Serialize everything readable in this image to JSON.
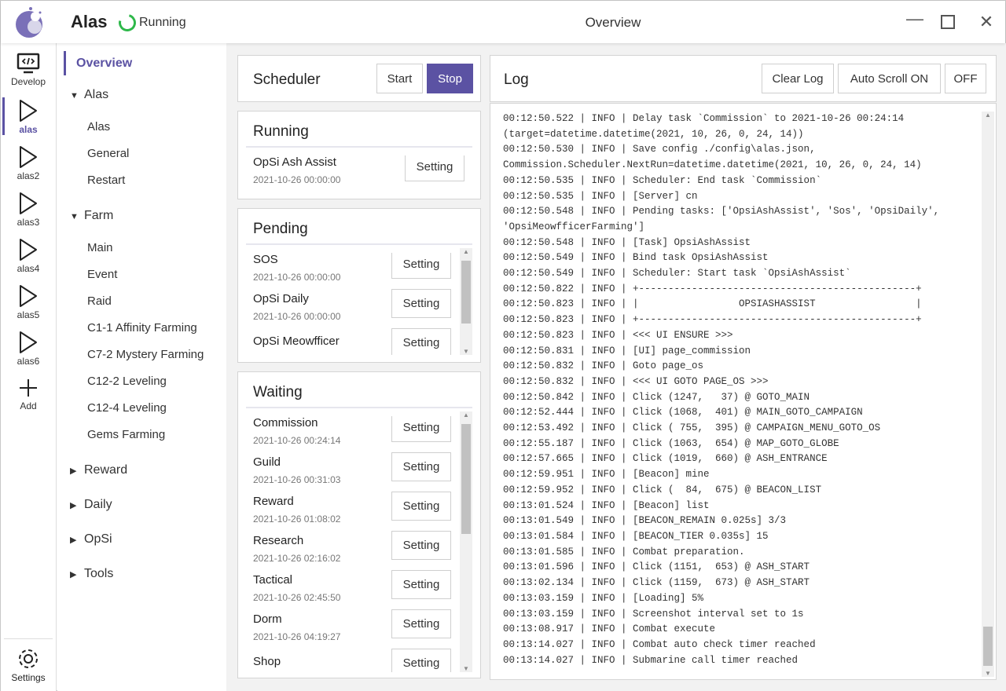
{
  "header": {
    "app_name": "Alas",
    "status": "Running",
    "page_title": "Overview"
  },
  "iconbar": {
    "items": [
      {
        "label": "Develop",
        "icon": "code-monitor-icon"
      },
      {
        "label": "alas",
        "icon": "play-icon"
      },
      {
        "label": "alas2",
        "icon": "play-icon"
      },
      {
        "label": "alas3",
        "icon": "play-icon"
      },
      {
        "label": "alas4",
        "icon": "play-icon"
      },
      {
        "label": "alas5",
        "icon": "play-icon"
      },
      {
        "label": "alas6",
        "icon": "play-icon"
      },
      {
        "label": "Add",
        "icon": "plus-icon"
      }
    ],
    "settings": "Settings",
    "active": "alas"
  },
  "nav": {
    "overview": "Overview",
    "groups": [
      {
        "label": "Alas",
        "expanded": true,
        "items": [
          "Alas",
          "General",
          "Restart"
        ]
      },
      {
        "label": "Farm",
        "expanded": true,
        "items": [
          "Main",
          "Event",
          "Raid",
          "C1-1 Affinity Farming",
          "C7-2 Mystery Farming",
          "C12-2 Leveling",
          "C12-4 Leveling",
          "Gems Farming"
        ]
      },
      {
        "label": "Reward",
        "expanded": false
      },
      {
        "label": "Daily",
        "expanded": false
      },
      {
        "label": "OpSi",
        "expanded": false
      },
      {
        "label": "Tools",
        "expanded": false
      }
    ]
  },
  "scheduler": {
    "title": "Scheduler",
    "start": "Start",
    "stop": "Stop"
  },
  "running": {
    "title": "Running",
    "tasks": [
      {
        "name": "OpSi Ash Assist",
        "time": "2021-10-26 00:00:00"
      }
    ]
  },
  "pending": {
    "title": "Pending",
    "tasks": [
      {
        "name": "SOS",
        "time": "2021-10-26 00:00:00"
      },
      {
        "name": "OpSi Daily",
        "time": "2021-10-26 00:00:00"
      },
      {
        "name": "OpSi Meowfficer Farming",
        "time": ""
      }
    ]
  },
  "waiting": {
    "title": "Waiting",
    "tasks": [
      {
        "name": "Commission",
        "time": "2021-10-26 00:24:14"
      },
      {
        "name": "Guild",
        "time": "2021-10-26 00:31:03"
      },
      {
        "name": "Reward",
        "time": "2021-10-26 01:08:02"
      },
      {
        "name": "Research",
        "time": "2021-10-26 02:16:02"
      },
      {
        "name": "Tactical",
        "time": "2021-10-26 02:45:50"
      },
      {
        "name": "Dorm",
        "time": "2021-10-26 04:19:27"
      },
      {
        "name": "Shop",
        "time": ""
      }
    ]
  },
  "setting_label": "Setting",
  "log": {
    "title": "Log",
    "clear": "Clear Log",
    "auto_scroll": "Auto Scroll ON",
    "off": "OFF",
    "lines": [
      "00:12:50.522 | INFO | Delay task `Commission` to 2021-10-26 00:24:14",
      "(target=datetime.datetime(2021, 10, 26, 0, 24, 14))",
      "00:12:50.530 | INFO | Save config ./config\\alas.json,",
      "Commission.Scheduler.NextRun=datetime.datetime(2021, 10, 26, 0, 24, 14)",
      "00:12:50.535 | INFO | Scheduler: End task `Commission`",
      "00:12:50.535 | INFO | [Server] cn",
      "00:12:50.548 | INFO | Pending tasks: ['OpsiAshAssist', 'Sos', 'OpsiDaily',",
      "'OpsiMeowfficerFarming']",
      "00:12:50.548 | INFO | [Task] OpsiAshAssist",
      "00:12:50.549 | INFO | Bind task OpsiAshAssist",
      "00:12:50.549 | INFO | Scheduler: Start task `OpsiAshAssist`",
      "00:12:50.822 | INFO | +-----------------------------------------------+",
      "00:12:50.823 | INFO | |                 OPSIASHASSIST                 |",
      "00:12:50.823 | INFO | +-----------------------------------------------+",
      "00:12:50.823 | INFO | <<< UI ENSURE >>>",
      "00:12:50.831 | INFO | [UI] page_commission",
      "00:12:50.832 | INFO | Goto page_os",
      "00:12:50.832 | INFO | <<< UI GOTO PAGE_OS >>>",
      "00:12:50.842 | INFO | Click (1247,   37) @ GOTO_MAIN",
      "00:12:52.444 | INFO | Click (1068,  401) @ MAIN_GOTO_CAMPAIGN",
      "00:12:53.492 | INFO | Click ( 755,  395) @ CAMPAIGN_MENU_GOTO_OS",
      "00:12:55.187 | INFO | Click (1063,  654) @ MAP_GOTO_GLOBE",
      "00:12:57.665 | INFO | Click (1019,  660) @ ASH_ENTRANCE",
      "00:12:59.951 | INFO | [Beacon] mine",
      "00:12:59.952 | INFO | Click (  84,  675) @ BEACON_LIST",
      "00:13:01.524 | INFO | [Beacon] list",
      "00:13:01.549 | INFO | [BEACON_REMAIN 0.025s] 3/3",
      "00:13:01.584 | INFO | [BEACON_TIER 0.035s] 15",
      "00:13:01.585 | INFO | Combat preparation.",
      "00:13:01.596 | INFO | Click (1151,  653) @ ASH_START",
      "00:13:02.134 | INFO | Click (1159,  673) @ ASH_START",
      "00:13:03.159 | INFO | [Loading] 5%",
      "00:13:03.159 | INFO | Screenshot interval set to 1s",
      "00:13:08.917 | INFO | Combat execute",
      "00:13:14.027 | INFO | Combat auto check timer reached",
      "00:13:14.027 | INFO | Submarine call timer reached"
    ]
  },
  "colors": {
    "accent": "#5b52a3",
    "running": "#2eb84a"
  }
}
